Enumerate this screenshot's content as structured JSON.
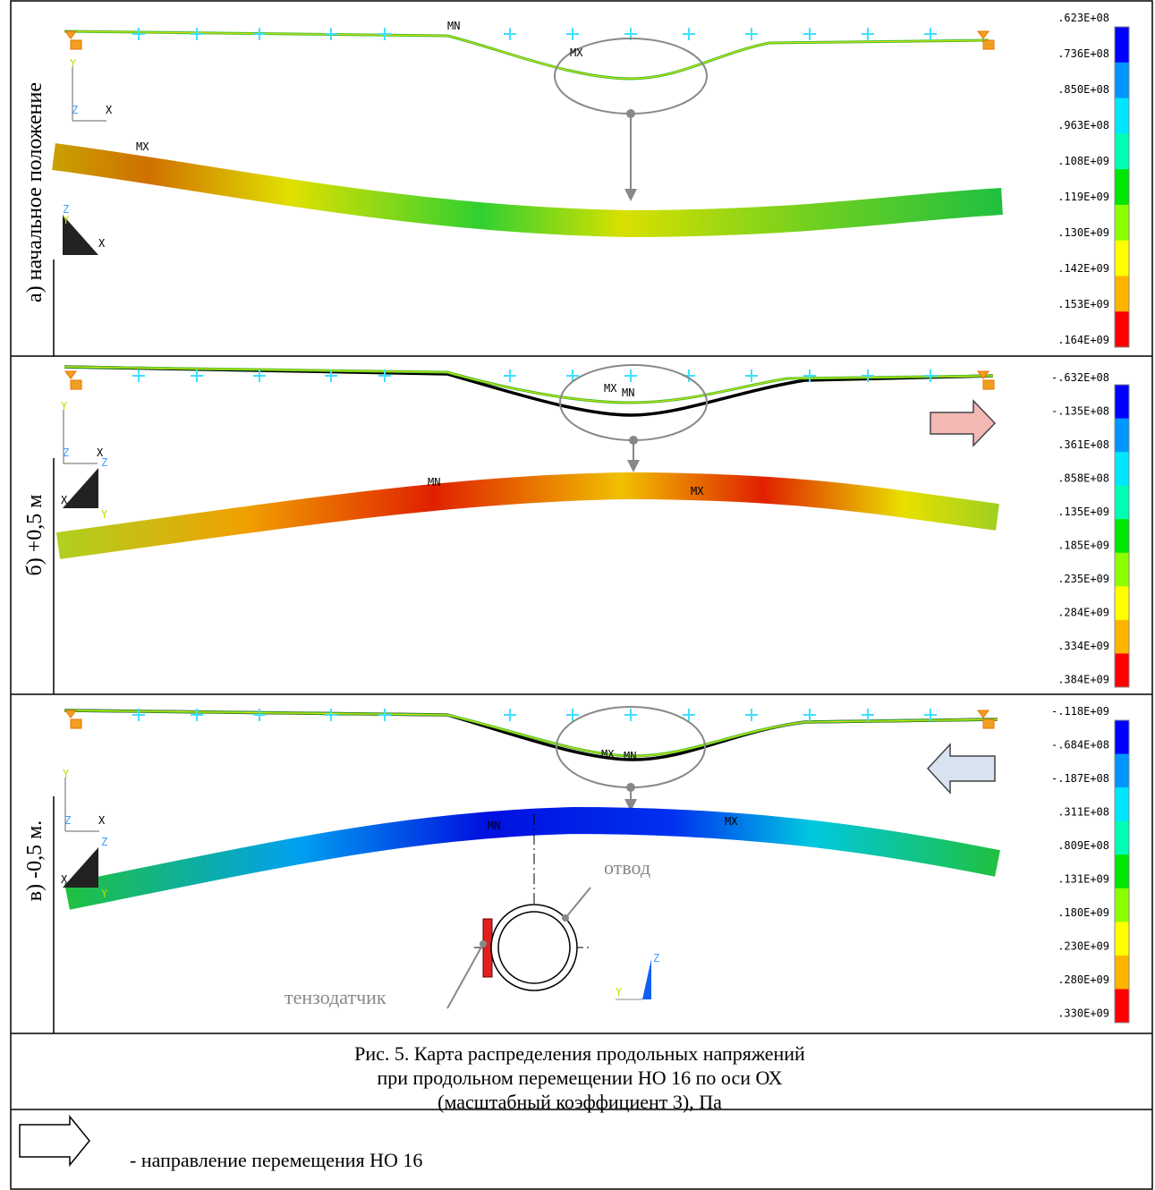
{
  "panels": [
    {
      "label": "а) начальное положение",
      "scale": [
        ".623E+08",
        ".736E+08",
        ".850E+08",
        ".963E+08",
        ".108E+09",
        ".119E+09",
        ".130E+09",
        ".142E+09",
        ".153E+09",
        ".164E+09"
      ],
      "markers": [
        "MN",
        "MX",
        "MX"
      ],
      "triad_top": [
        "Y",
        "Z",
        "X"
      ],
      "triad_bottom": [
        "Z",
        "Y",
        "X"
      ]
    },
    {
      "label": "б) +0,5 м",
      "scale": [
        "-.632E+08",
        "-.135E+08",
        ".361E+08",
        ".858E+08",
        ".135E+09",
        ".185E+09",
        ".235E+09",
        ".284E+09",
        ".334E+09",
        ".384E+09"
      ],
      "markers": [
        "MX",
        "MN",
        "MN",
        "MX"
      ],
      "triad_top": [
        "Y",
        "Z",
        "X"
      ],
      "triad_bottom": [
        "Z",
        "X",
        "Y"
      ]
    },
    {
      "label": "в) -0,5 м.",
      "scale": [
        "-.118E+09",
        "-.684E+08",
        "-.187E+08",
        ".311E+08",
        ".809E+08",
        ".131E+09",
        ".180E+09",
        ".230E+09",
        ".280E+09",
        ".330E+09"
      ],
      "markers": [
        "MX",
        "MN",
        "MN",
        "MX"
      ],
      "triad_top": [
        "Y",
        "Z",
        "X"
      ],
      "triad_bottom": [
        "Z",
        "X",
        "Y"
      ],
      "section_triad": [
        "Z",
        "Y"
      ],
      "callouts": [
        "отвод",
        "тензодатчик"
      ]
    }
  ],
  "caption": [
    "Рис. 5. Карта распределения продольных напряжений",
    "при продольном перемещении НО 16 по оси ОХ",
    "(масштабный коэффициент 3), Па"
  ],
  "legend": "- направление перемещения НО 16"
}
